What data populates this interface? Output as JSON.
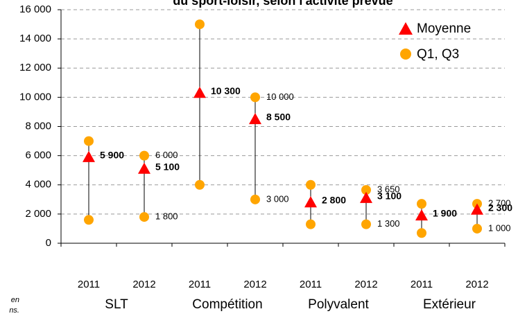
{
  "chart_data": {
    "type": "range",
    "title": "du sport-loisir, selon l'activité prévue",
    "categories": [
      "2011",
      "2012",
      "2011",
      "2012",
      "2011",
      "2012",
      "2011",
      "2012"
    ],
    "groups": [
      "SLT",
      "Compétition",
      "Polyvalent",
      "Extérieur"
    ],
    "footnote_fragments": [
      "en",
      "ns."
    ],
    "series": [
      {
        "name": "Moyenne",
        "color": "#ff0000",
        "marker": "triangle",
        "values": [
          5900,
          5100,
          10300,
          8500,
          2800,
          3100,
          1900,
          2300
        ],
        "value_labels": [
          "5 900",
          "5 100",
          "10 300",
          "8 500",
          "2 800",
          "3 100",
          "1 900",
          "2 300"
        ]
      },
      {
        "name": "Q1, Q3",
        "color": "#ffa500",
        "marker": "circle",
        "q1": [
          1600,
          1800,
          4000,
          3000,
          1300,
          1300,
          700,
          1000
        ],
        "q1_labels": [
          null,
          "1 800",
          null,
          "3 000",
          null,
          "1 300",
          null,
          "1 000"
        ],
        "q3": [
          7000,
          6000,
          15000,
          10000,
          4000,
          3650,
          2700,
          2700
        ],
        "q3_labels": [
          null,
          "6 000",
          null,
          "10 000",
          null,
          "3 650",
          null,
          "2 700"
        ]
      }
    ],
    "ylim": [
      0,
      16000
    ],
    "yticks": [
      {
        "value": 0,
        "label": "0"
      },
      {
        "value": 2000,
        "label": "2 000"
      },
      {
        "value": 4000,
        "label": "4 000"
      },
      {
        "value": 6000,
        "label": "6 000"
      },
      {
        "value": 8000,
        "label": "8 000"
      },
      {
        "value": 10000,
        "label": "10 000"
      },
      {
        "value": 12000,
        "label": "12 000"
      },
      {
        "value": 14000,
        "label": "14 000"
      },
      {
        "value": 16000,
        "label": "16 000"
      }
    ],
    "grid": true,
    "legend": "top-right"
  }
}
